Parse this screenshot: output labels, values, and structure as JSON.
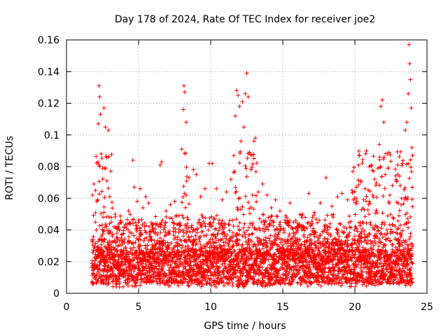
{
  "chart_data": {
    "type": "scatter",
    "title": "Day 178 of 2024, Rate Of TEC Index for receiver joe2",
    "xlabel": "GPS time / hours",
    "ylabel": "ROTI / TECUs",
    "xlim": [
      0,
      25
    ],
    "ylim": [
      0,
      0.16
    ],
    "xticks": [
      0,
      5,
      10,
      15,
      20,
      25
    ],
    "yticks": [
      0,
      0.02,
      0.04,
      0.06,
      0.08,
      0.1,
      0.12,
      0.14,
      0.16
    ],
    "xtick_labels": [
      "0",
      "5",
      "10",
      "15",
      "20",
      "25"
    ],
    "ytick_labels": [
      "0",
      "0.02",
      "0.04",
      "0.06",
      "0.08",
      "0.1",
      "0.12",
      "0.14",
      "0.16"
    ],
    "grid": true,
    "marker": "+",
    "marker_color": "#ff0000",
    "series": [
      {
        "name": "ROTI",
        "points": [
          [
            1.8,
            0.062
          ],
          [
            1.9,
            0.069
          ],
          [
            2.0,
            0.045
          ],
          [
            2.1,
            0.058
          ],
          [
            2.2,
            0.107
          ],
          [
            2.25,
            0.131
          ],
          [
            2.3,
            0.124
          ],
          [
            2.35,
            0.113
          ],
          [
            2.4,
            0.088
          ],
          [
            2.5,
            0.079
          ],
          [
            2.6,
            0.117
          ],
          [
            2.7,
            0.105
          ],
          [
            2.8,
            0.071
          ],
          [
            2.9,
            0.103
          ],
          [
            3.0,
            0.061
          ],
          [
            3.1,
            0.045
          ],
          [
            3.3,
            0.042
          ],
          [
            3.5,
            0.038
          ],
          [
            3.8,
            0.035
          ],
          [
            4.0,
            0.042
          ],
          [
            4.3,
            0.052
          ],
          [
            4.6,
            0.084
          ],
          [
            4.7,
            0.067
          ],
          [
            4.9,
            0.058
          ],
          [
            5.1,
            0.066
          ],
          [
            5.3,
            0.054
          ],
          [
            5.5,
            0.061
          ],
          [
            5.7,
            0.057
          ],
          [
            6.0,
            0.044
          ],
          [
            6.3,
            0.038
          ],
          [
            6.5,
            0.081
          ],
          [
            6.6,
            0.083
          ],
          [
            6.9,
            0.052
          ],
          [
            7.2,
            0.056
          ],
          [
            7.5,
            0.058
          ],
          [
            7.8,
            0.049
          ],
          [
            8.0,
            0.091
          ],
          [
            8.1,
            0.116
          ],
          [
            8.15,
            0.131
          ],
          [
            8.2,
            0.127
          ],
          [
            8.3,
            0.108
          ],
          [
            8.5,
            0.073
          ],
          [
            8.8,
            0.078
          ],
          [
            9.0,
            0.075
          ],
          [
            9.3,
            0.061
          ],
          [
            9.6,
            0.066
          ],
          [
            9.9,
            0.082
          ],
          [
            10.1,
            0.082
          ],
          [
            10.4,
            0.066
          ],
          [
            10.8,
            0.059
          ],
          [
            11.1,
            0.064
          ],
          [
            11.4,
            0.072
          ],
          [
            11.6,
            0.087
          ],
          [
            11.7,
            0.112
          ],
          [
            11.8,
            0.128
          ],
          [
            11.9,
            0.125
          ],
          [
            12.0,
            0.118
          ],
          [
            12.1,
            0.096
          ],
          [
            12.2,
            0.121
          ],
          [
            12.3,
            0.105
          ],
          [
            12.4,
            0.126
          ],
          [
            12.5,
            0.139
          ],
          [
            12.6,
            0.124
          ],
          [
            12.7,
            0.089
          ],
          [
            12.8,
            0.078
          ],
          [
            13.0,
            0.096
          ],
          [
            13.1,
            0.098
          ],
          [
            13.3,
            0.064
          ],
          [
            13.6,
            0.069
          ],
          [
            13.9,
            0.062
          ],
          [
            14.2,
            0.054
          ],
          [
            14.5,
            0.059
          ],
          [
            14.8,
            0.052
          ],
          [
            15.2,
            0.049
          ],
          [
            15.5,
            0.057
          ],
          [
            15.9,
            0.046
          ],
          [
            16.3,
            0.042
          ],
          [
            16.8,
            0.063
          ],
          [
            17.2,
            0.051
          ],
          [
            17.6,
            0.057
          ],
          [
            18.0,
            0.073
          ],
          [
            18.4,
            0.055
          ],
          [
            18.8,
            0.061
          ],
          [
            19.1,
            0.063
          ],
          [
            19.5,
            0.059
          ],
          [
            19.8,
            0.065
          ],
          [
            20.1,
            0.067
          ],
          [
            20.4,
            0.071
          ],
          [
            20.7,
            0.066
          ],
          [
            21.0,
            0.058
          ],
          [
            21.3,
            0.077
          ],
          [
            21.6,
            0.079
          ],
          [
            21.7,
            0.094
          ],
          [
            21.8,
            0.118
          ],
          [
            21.9,
            0.122
          ],
          [
            22.0,
            0.108
          ],
          [
            22.3,
            0.079
          ],
          [
            22.6,
            0.068
          ],
          [
            22.9,
            0.071
          ],
          [
            23.1,
            0.074
          ],
          [
            23.3,
            0.082
          ],
          [
            23.5,
            0.103
          ],
          [
            23.6,
            0.108
          ],
          [
            23.7,
            0.126
          ],
          [
            23.75,
            0.157
          ],
          [
            23.8,
            0.145
          ],
          [
            23.85,
            0.135
          ],
          [
            23.9,
            0.117
          ],
          [
            23.95,
            0.092
          ]
        ]
      }
    ]
  }
}
